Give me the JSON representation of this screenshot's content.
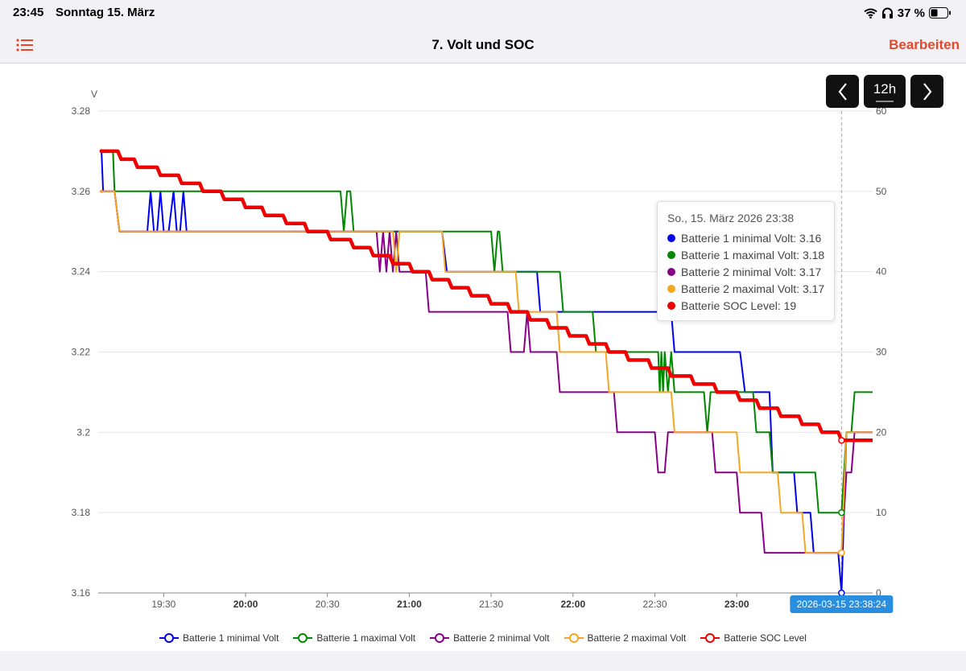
{
  "status": {
    "time": "23:45",
    "date": "Sonntag 15. März",
    "battery": "37 %"
  },
  "nav": {
    "title": "7. Volt und SOC",
    "edit": "Bearbeiten"
  },
  "controls": {
    "range": "12h"
  },
  "tooltip": {
    "title": "So., 15. März 2026 23:38",
    "rows": [
      {
        "label": "Batterie 1 minimal Volt: 3.16",
        "color": "#0000ee"
      },
      {
        "label": "Batterie 1 maximal Volt: 3.18",
        "color": "#008800"
      },
      {
        "label": "Batterie 2 minimal Volt: 3.17",
        "color": "#880088"
      },
      {
        "label": "Batterie 2 maximal Volt: 3.17",
        "color": "#f5a623"
      },
      {
        "label": "Batterie SOC Level: 19",
        "color": "#ee0000"
      }
    ]
  },
  "chart_data": {
    "type": "line",
    "ylabel": "V",
    "ylim": [
      3.16,
      3.28
    ],
    "yticks": [
      "3.16",
      "3.18",
      "3.2",
      "3.22",
      "3.24",
      "3.26",
      "3.28"
    ],
    "y2lim": [
      0,
      60
    ],
    "y2ticks": [
      "0",
      "10",
      "20",
      "30",
      "40",
      "50",
      "60"
    ],
    "xrange": [
      19.1,
      23.83
    ],
    "xticks": [
      {
        "t": 19.5,
        "label": "19:30",
        "bold": false
      },
      {
        "t": 20.0,
        "label": "20:00",
        "bold": true
      },
      {
        "t": 20.5,
        "label": "20:30",
        "bold": false
      },
      {
        "t": 21.0,
        "label": "21:00",
        "bold": true
      },
      {
        "t": 21.5,
        "label": "21:30",
        "bold": false
      },
      {
        "t": 22.0,
        "label": "22:00",
        "bold": true
      },
      {
        "t": 22.5,
        "label": "22:30",
        "bold": false
      },
      {
        "t": 23.0,
        "label": "23:00",
        "bold": true
      }
    ],
    "cursor": {
      "t": 23.64,
      "label": "2026-03-15 23:38:24"
    },
    "series": [
      {
        "name": "Batterie 1 minimal Volt",
        "color": "#0000ee",
        "axis": "left",
        "points": [
          [
            19.12,
            3.27
          ],
          [
            19.13,
            3.26
          ],
          [
            19.2,
            3.26
          ],
          [
            19.23,
            3.25
          ],
          [
            19.4,
            3.25
          ],
          [
            19.42,
            3.26
          ],
          [
            19.44,
            3.25
          ],
          [
            19.46,
            3.25
          ],
          [
            19.48,
            3.26
          ],
          [
            19.5,
            3.25
          ],
          [
            19.53,
            3.25
          ],
          [
            19.56,
            3.26
          ],
          [
            19.58,
            3.25
          ],
          [
            19.6,
            3.25
          ],
          [
            19.62,
            3.26
          ],
          [
            19.64,
            3.25
          ],
          [
            19.66,
            3.25
          ],
          [
            19.68,
            3.25
          ],
          [
            19.7,
            3.25
          ],
          [
            19.85,
            3.25
          ],
          [
            19.87,
            3.25
          ],
          [
            20.0,
            3.25
          ],
          [
            21.2,
            3.25
          ],
          [
            21.23,
            3.24
          ],
          [
            21.78,
            3.24
          ],
          [
            21.8,
            3.23
          ],
          [
            22.6,
            3.23
          ],
          [
            22.62,
            3.22
          ],
          [
            23.02,
            3.22
          ],
          [
            23.05,
            3.21
          ],
          [
            23.2,
            3.21
          ],
          [
            23.22,
            3.19
          ],
          [
            23.35,
            3.19
          ],
          [
            23.37,
            3.18
          ],
          [
            23.45,
            3.18
          ],
          [
            23.47,
            3.17
          ],
          [
            23.62,
            3.17
          ],
          [
            23.64,
            3.16
          ],
          [
            23.67,
            3.2
          ],
          [
            23.83,
            3.2
          ]
        ]
      },
      {
        "name": "Batterie 1 maximal Volt",
        "color": "#008800",
        "axis": "left",
        "points": [
          [
            19.12,
            3.27
          ],
          [
            19.19,
            3.27
          ],
          [
            19.2,
            3.26
          ],
          [
            20.58,
            3.26
          ],
          [
            20.6,
            3.25
          ],
          [
            20.62,
            3.26
          ],
          [
            20.64,
            3.26
          ],
          [
            20.66,
            3.25
          ],
          [
            21.2,
            3.25
          ],
          [
            21.5,
            3.25
          ],
          [
            21.52,
            3.24
          ],
          [
            21.54,
            3.25
          ],
          [
            21.55,
            3.25
          ],
          [
            21.57,
            3.24
          ],
          [
            21.8,
            3.24
          ],
          [
            21.92,
            3.24
          ],
          [
            21.94,
            3.23
          ],
          [
            22.12,
            3.23
          ],
          [
            22.14,
            3.22
          ],
          [
            22.52,
            3.22
          ],
          [
            22.53,
            3.21
          ],
          [
            22.54,
            3.22
          ],
          [
            22.55,
            3.21
          ],
          [
            22.56,
            3.22
          ],
          [
            22.58,
            3.21
          ],
          [
            22.6,
            3.22
          ],
          [
            22.62,
            3.21
          ],
          [
            22.8,
            3.21
          ],
          [
            22.82,
            3.2
          ],
          [
            22.84,
            3.21
          ],
          [
            23.1,
            3.21
          ],
          [
            23.12,
            3.2
          ],
          [
            23.2,
            3.2
          ],
          [
            23.22,
            3.19
          ],
          [
            23.48,
            3.19
          ],
          [
            23.5,
            3.18
          ],
          [
            23.64,
            3.18
          ],
          [
            23.67,
            3.2
          ],
          [
            23.7,
            3.2
          ],
          [
            23.72,
            3.21
          ],
          [
            23.83,
            3.21
          ]
        ]
      },
      {
        "name": "Batterie 2 minimal Volt",
        "color": "#880088",
        "axis": "left",
        "points": [
          [
            19.12,
            3.26
          ],
          [
            19.2,
            3.26
          ],
          [
            19.23,
            3.25
          ],
          [
            20.8,
            3.25
          ],
          [
            20.82,
            3.24
          ],
          [
            20.84,
            3.25
          ],
          [
            20.86,
            3.24
          ],
          [
            20.88,
            3.25
          ],
          [
            20.9,
            3.24
          ],
          [
            20.92,
            3.25
          ],
          [
            20.94,
            3.24
          ],
          [
            21.0,
            3.24
          ],
          [
            21.1,
            3.24
          ],
          [
            21.12,
            3.23
          ],
          [
            21.6,
            3.23
          ],
          [
            21.62,
            3.22
          ],
          [
            21.7,
            3.22
          ],
          [
            21.72,
            3.23
          ],
          [
            21.74,
            3.22
          ],
          [
            21.76,
            3.22
          ],
          [
            21.9,
            3.22
          ],
          [
            21.92,
            3.21
          ],
          [
            22.25,
            3.21
          ],
          [
            22.27,
            3.2
          ],
          [
            22.5,
            3.2
          ],
          [
            22.52,
            3.19
          ],
          [
            22.56,
            3.19
          ],
          [
            22.58,
            3.2
          ],
          [
            22.8,
            3.2
          ],
          [
            22.85,
            3.2
          ],
          [
            22.87,
            3.19
          ],
          [
            23.0,
            3.19
          ],
          [
            23.02,
            3.18
          ],
          [
            23.15,
            3.18
          ],
          [
            23.17,
            3.17
          ],
          [
            23.62,
            3.17
          ],
          [
            23.64,
            3.17
          ],
          [
            23.67,
            3.19
          ],
          [
            23.7,
            3.19
          ],
          [
            23.72,
            3.2
          ],
          [
            23.83,
            3.2
          ]
        ]
      },
      {
        "name": "Batterie 2 maximal Volt",
        "color": "#f5a623",
        "axis": "left",
        "points": [
          [
            19.12,
            3.26
          ],
          [
            19.2,
            3.26
          ],
          [
            19.23,
            3.25
          ],
          [
            20.5,
            3.25
          ],
          [
            20.9,
            3.25
          ],
          [
            20.92,
            3.24
          ],
          [
            20.94,
            3.25
          ],
          [
            21.2,
            3.25
          ],
          [
            21.22,
            3.24
          ],
          [
            21.65,
            3.24
          ],
          [
            21.67,
            3.23
          ],
          [
            21.9,
            3.23
          ],
          [
            21.92,
            3.22
          ],
          [
            22.2,
            3.22
          ],
          [
            22.22,
            3.21
          ],
          [
            22.6,
            3.21
          ],
          [
            22.62,
            3.2
          ],
          [
            23.0,
            3.2
          ],
          [
            23.02,
            3.19
          ],
          [
            23.25,
            3.19
          ],
          [
            23.27,
            3.18
          ],
          [
            23.4,
            3.18
          ],
          [
            23.42,
            3.17
          ],
          [
            23.62,
            3.17
          ],
          [
            23.64,
            3.17
          ],
          [
            23.67,
            3.2
          ],
          [
            23.83,
            3.2
          ]
        ]
      },
      {
        "name": "Batterie SOC Level",
        "color": "#ee0000",
        "axis": "right",
        "points": [
          [
            19.12,
            55
          ],
          [
            19.22,
            55
          ],
          [
            19.24,
            54
          ],
          [
            19.32,
            54
          ],
          [
            19.34,
            53
          ],
          [
            19.46,
            53
          ],
          [
            19.48,
            52
          ],
          [
            19.59,
            52
          ],
          [
            19.61,
            51
          ],
          [
            19.72,
            51
          ],
          [
            19.74,
            50
          ],
          [
            19.85,
            50
          ],
          [
            19.87,
            49
          ],
          [
            19.98,
            49
          ],
          [
            20.0,
            48
          ],
          [
            20.1,
            48
          ],
          [
            20.12,
            47
          ],
          [
            20.23,
            47
          ],
          [
            20.25,
            46
          ],
          [
            20.36,
            46
          ],
          [
            20.38,
            45
          ],
          [
            20.5,
            45
          ],
          [
            20.52,
            44
          ],
          [
            20.64,
            44
          ],
          [
            20.66,
            43
          ],
          [
            20.76,
            43
          ],
          [
            20.78,
            42
          ],
          [
            20.88,
            42
          ],
          [
            20.9,
            41
          ],
          [
            21.0,
            41
          ],
          [
            21.02,
            40
          ],
          [
            21.12,
            40
          ],
          [
            21.14,
            39
          ],
          [
            21.24,
            39
          ],
          [
            21.26,
            38
          ],
          [
            21.36,
            38
          ],
          [
            21.38,
            37
          ],
          [
            21.48,
            37
          ],
          [
            21.5,
            36
          ],
          [
            21.6,
            36
          ],
          [
            21.62,
            35
          ],
          [
            21.72,
            35
          ],
          [
            21.74,
            34
          ],
          [
            21.84,
            34
          ],
          [
            21.86,
            33
          ],
          [
            21.96,
            33
          ],
          [
            21.98,
            32
          ],
          [
            22.08,
            32
          ],
          [
            22.1,
            31
          ],
          [
            22.2,
            31
          ],
          [
            22.22,
            30
          ],
          [
            22.32,
            30
          ],
          [
            22.34,
            29
          ],
          [
            22.46,
            29
          ],
          [
            22.48,
            28
          ],
          [
            22.58,
            28
          ],
          [
            22.6,
            27
          ],
          [
            22.72,
            27
          ],
          [
            22.74,
            26
          ],
          [
            22.86,
            26
          ],
          [
            22.88,
            25
          ],
          [
            23.0,
            25
          ],
          [
            23.02,
            24
          ],
          [
            23.12,
            24
          ],
          [
            23.14,
            23
          ],
          [
            23.25,
            23
          ],
          [
            23.27,
            22
          ],
          [
            23.38,
            22
          ],
          [
            23.4,
            21
          ],
          [
            23.5,
            21
          ],
          [
            23.52,
            20
          ],
          [
            23.62,
            20
          ],
          [
            23.64,
            19
          ],
          [
            23.83,
            19
          ]
        ]
      }
    ]
  },
  "legend": [
    {
      "name": "Batterie 1 minimal Volt",
      "color": "#0000ee"
    },
    {
      "name": "Batterie 1 maximal Volt",
      "color": "#008800"
    },
    {
      "name": "Batterie 2 minimal Volt",
      "color": "#880088"
    },
    {
      "name": "Batterie 2 maximal Volt",
      "color": "#f5a623"
    },
    {
      "name": "Batterie SOC Level",
      "color": "#ee0000"
    }
  ]
}
